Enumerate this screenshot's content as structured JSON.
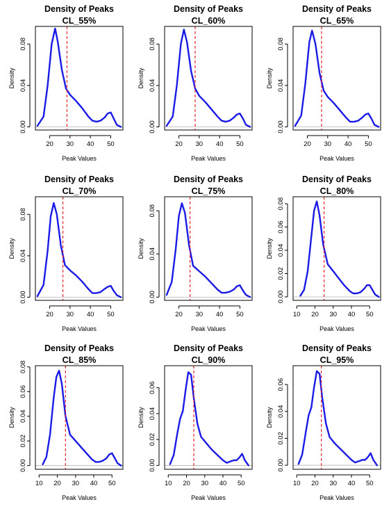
{
  "chart_data": [
    {
      "type": "line",
      "title": "Density of Peaks",
      "subtitle": "CL_55%",
      "xlabel": "Peak Values",
      "ylabel": "Density",
      "xlim": [
        13,
        56
      ],
      "ylim": [
        -0.003,
        0.097
      ],
      "xticks": [
        20,
        30,
        40,
        50
      ],
      "yticks": [
        0.0,
        0.04,
        0.08
      ],
      "vline": 28.5,
      "x": [
        14,
        17,
        19,
        21,
        22.7,
        24,
        26,
        28,
        30,
        33,
        36,
        39,
        41,
        43,
        45,
        47,
        48.5,
        50,
        51.5,
        53,
        55
      ],
      "y": [
        0.001,
        0.01,
        0.04,
        0.08,
        0.095,
        0.082,
        0.055,
        0.037,
        0.031,
        0.025,
        0.018,
        0.01,
        0.006,
        0.005,
        0.006,
        0.009,
        0.013,
        0.014,
        0.008,
        0.002,
        0.0
      ]
    },
    {
      "type": "line",
      "title": "Density of Peaks",
      "subtitle": "CL_60%",
      "xlabel": "Peak Values",
      "ylabel": "Density",
      "xlim": [
        13,
        56
      ],
      "ylim": [
        -0.003,
        0.097
      ],
      "xticks": [
        20,
        30,
        40,
        50
      ],
      "yticks": [
        0.0,
        0.04,
        0.08
      ],
      "vline": 28,
      "x": [
        14,
        17,
        19,
        21,
        22.5,
        24,
        26,
        28,
        30,
        33,
        36,
        39,
        41,
        43,
        45,
        47,
        48.5,
        50,
        51.5,
        53,
        55
      ],
      "y": [
        0.001,
        0.01,
        0.04,
        0.08,
        0.094,
        0.082,
        0.054,
        0.037,
        0.03,
        0.024,
        0.017,
        0.01,
        0.006,
        0.005,
        0.006,
        0.009,
        0.012,
        0.013,
        0.008,
        0.002,
        0.0
      ]
    },
    {
      "type": "line",
      "title": "Density of Peaks",
      "subtitle": "CL_65%",
      "xlabel": "Peak Values",
      "ylabel": "Density",
      "xlim": [
        13,
        56
      ],
      "ylim": [
        -0.003,
        0.097
      ],
      "xticks": [
        20,
        30,
        40,
        50
      ],
      "yticks": [
        0.0,
        0.04,
        0.08
      ],
      "vline": 27,
      "x": [
        14,
        17,
        19,
        21,
        22.3,
        24,
        26,
        28,
        30,
        33,
        36,
        39,
        41,
        43,
        45,
        47,
        48.5,
        50,
        51.5,
        53,
        55
      ],
      "y": [
        0.001,
        0.011,
        0.042,
        0.082,
        0.093,
        0.08,
        0.052,
        0.035,
        0.029,
        0.023,
        0.016,
        0.009,
        0.005,
        0.005,
        0.006,
        0.009,
        0.012,
        0.013,
        0.008,
        0.002,
        0.0
      ]
    },
    {
      "type": "line",
      "title": "Density of Peaks",
      "subtitle": "CL_70%",
      "xlabel": "Peak Values",
      "ylabel": "Density",
      "xlim": [
        13,
        56
      ],
      "ylim": [
        -0.003,
        0.097
      ],
      "xticks": [
        20,
        30,
        40,
        50
      ],
      "yticks": [
        0.0,
        0.04,
        0.08
      ],
      "vline": 26.5,
      "x": [
        14,
        17,
        19,
        20.5,
        22,
        23.5,
        25.5,
        27.5,
        30,
        33,
        36,
        39,
        41,
        43,
        45,
        47,
        48.5,
        50,
        51.5,
        53,
        55
      ],
      "y": [
        0.001,
        0.012,
        0.045,
        0.078,
        0.091,
        0.08,
        0.05,
        0.031,
        0.026,
        0.021,
        0.015,
        0.008,
        0.004,
        0.004,
        0.005,
        0.008,
        0.01,
        0.011,
        0.006,
        0.002,
        0.0
      ]
    },
    {
      "type": "line",
      "title": "Density of Peaks",
      "subtitle": "CL_75%",
      "xlabel": "Peak Values",
      "ylabel": "Density",
      "xlim": [
        13,
        56
      ],
      "ylim": [
        -0.003,
        0.093
      ],
      "xticks": [
        20,
        30,
        40,
        50
      ],
      "yticks": [
        0.0,
        0.04,
        0.08
      ],
      "vline": 25.5,
      "x": [
        14,
        16.5,
        18.5,
        20,
        21.5,
        23,
        25,
        27,
        30,
        33,
        36,
        39,
        41,
        43,
        45,
        47,
        48.5,
        50,
        51.5,
        53,
        55
      ],
      "y": [
        0.002,
        0.014,
        0.045,
        0.075,
        0.087,
        0.078,
        0.048,
        0.029,
        0.024,
        0.019,
        0.013,
        0.007,
        0.004,
        0.004,
        0.005,
        0.007,
        0.01,
        0.011,
        0.006,
        0.002,
        0.0
      ]
    },
    {
      "type": "line",
      "title": "Density of Peaks",
      "subtitle": "CL_80%",
      "xlabel": "Peak Values",
      "ylabel": "Density",
      "xlim": [
        8,
        56
      ],
      "ylim": [
        -0.003,
        0.086
      ],
      "xticks": [
        10,
        20,
        30,
        40,
        50
      ],
      "yticks": [
        0.0,
        0.02,
        0.04,
        0.06,
        0.08
      ],
      "vline": 25,
      "x": [
        12,
        14,
        16,
        18,
        19.5,
        21,
        22.5,
        24.5,
        27,
        30,
        33,
        36,
        39,
        41,
        43,
        45,
        47,
        48.5,
        50,
        51.5,
        53,
        55
      ],
      "y": [
        0.001,
        0.006,
        0.022,
        0.052,
        0.074,
        0.082,
        0.07,
        0.045,
        0.028,
        0.022,
        0.016,
        0.01,
        0.005,
        0.003,
        0.003,
        0.004,
        0.007,
        0.01,
        0.01,
        0.006,
        0.002,
        0.0
      ]
    },
    {
      "type": "line",
      "title": "Density of Peaks",
      "subtitle": "CL_85%",
      "xlabel": "Peak Values",
      "ylabel": "Density",
      "xlim": [
        8,
        56
      ],
      "ylim": [
        -0.003,
        0.081
      ],
      "xticks": [
        10,
        20,
        30,
        40,
        50
      ],
      "yticks": [
        0.0,
        0.02,
        0.04,
        0.06,
        0.08
      ],
      "vline": 24.5,
      "x": [
        12,
        14,
        16,
        18,
        19.5,
        21,
        22.5,
        24.5,
        27,
        30,
        33,
        36,
        39,
        41,
        43,
        45,
        47,
        48.5,
        50,
        51.5,
        53,
        55
      ],
      "y": [
        0.001,
        0.007,
        0.025,
        0.055,
        0.072,
        0.077,
        0.066,
        0.04,
        0.025,
        0.02,
        0.015,
        0.01,
        0.005,
        0.003,
        0.003,
        0.004,
        0.006,
        0.009,
        0.01,
        0.006,
        0.002,
        0.0
      ]
    },
    {
      "type": "line",
      "title": "Density of Peaks",
      "subtitle": "CL_90%",
      "xlabel": "Peak Values",
      "ylabel": "Density",
      "xlim": [
        8,
        56
      ],
      "ylim": [
        -0.003,
        0.077
      ],
      "xticks": [
        10,
        20,
        30,
        40,
        50
      ],
      "yticks": [
        0.0,
        0.02,
        0.04,
        0.06
      ],
      "vline": 24,
      "x": [
        11,
        13,
        15,
        16.5,
        18,
        19.5,
        21,
        22.5,
        24,
        26,
        28,
        31,
        34,
        37,
        40,
        42,
        44,
        46,
        47.5,
        49,
        50.5,
        52,
        54
      ],
      "y": [
        0.001,
        0.008,
        0.025,
        0.036,
        0.042,
        0.058,
        0.072,
        0.07,
        0.052,
        0.032,
        0.022,
        0.017,
        0.012,
        0.008,
        0.004,
        0.002,
        0.003,
        0.004,
        0.004,
        0.006,
        0.009,
        0.004,
        0.0
      ]
    },
    {
      "type": "line",
      "title": "Density of Peaks",
      "subtitle": "CL_95%",
      "xlabel": "Peak Values",
      "ylabel": "Density",
      "xlim": [
        8,
        56
      ],
      "ylim": [
        -0.003,
        0.074
      ],
      "xticks": [
        10,
        20,
        30,
        40,
        50
      ],
      "yticks": [
        0.0,
        0.02,
        0.04,
        0.06
      ],
      "vline": 23.5,
      "x": [
        11,
        13,
        15,
        16.5,
        18,
        19.5,
        21,
        22.5,
        24,
        26,
        28,
        31,
        34,
        37,
        40,
        42,
        44,
        46,
        47.5,
        49,
        50.5,
        52,
        54
      ],
      "y": [
        0.001,
        0.008,
        0.025,
        0.037,
        0.043,
        0.058,
        0.07,
        0.068,
        0.05,
        0.031,
        0.021,
        0.016,
        0.012,
        0.008,
        0.004,
        0.002,
        0.003,
        0.004,
        0.004,
        0.006,
        0.009,
        0.004,
        0.0
      ]
    }
  ]
}
